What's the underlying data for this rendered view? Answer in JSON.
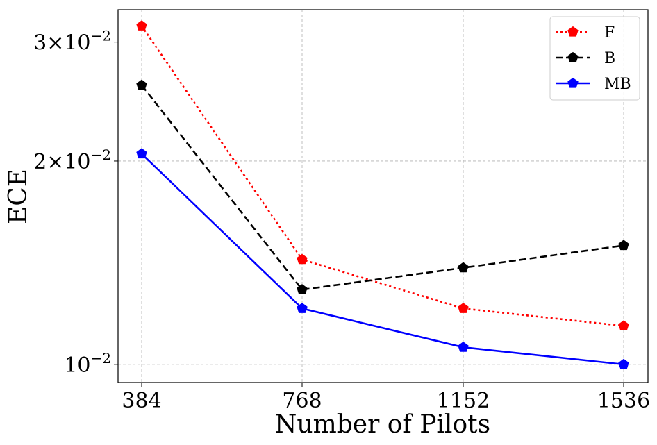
{
  "chart_data": {
    "type": "line",
    "xlabel": "Number of Pilots",
    "ylabel": "ECE",
    "x": [
      384,
      768,
      1152,
      1536
    ],
    "x_tick_labels": [
      "384",
      "768",
      "1152",
      "1536"
    ],
    "yscale": "log",
    "ylim": [
      0.0094,
      0.0335
    ],
    "y_ticks": [
      {
        "value": 0.01,
        "mantissa": "",
        "exponent": "−2",
        "base": "10"
      },
      {
        "value": 0.02,
        "mantissa": "2×",
        "exponent": "−2",
        "base": "10"
      },
      {
        "value": 0.03,
        "mantissa": "3×",
        "exponent": "−2",
        "base": "10"
      }
    ],
    "grid": true,
    "legend_position": "top-right",
    "series": [
      {
        "name": "F",
        "color": "#ff0000",
        "line_style": "dotted",
        "marker": "pentagon",
        "values": [
          0.0317,
          0.0143,
          0.0121,
          0.0114
        ]
      },
      {
        "name": "B",
        "color": "#000000",
        "line_style": "dashed",
        "marker": "pentagon",
        "values": [
          0.0259,
          0.0129,
          0.0139,
          0.015
        ]
      },
      {
        "name": "MB",
        "color": "#0000ff",
        "line_style": "solid",
        "marker": "pentagon",
        "values": [
          0.0205,
          0.0121,
          0.0106,
          0.01
        ]
      }
    ]
  }
}
